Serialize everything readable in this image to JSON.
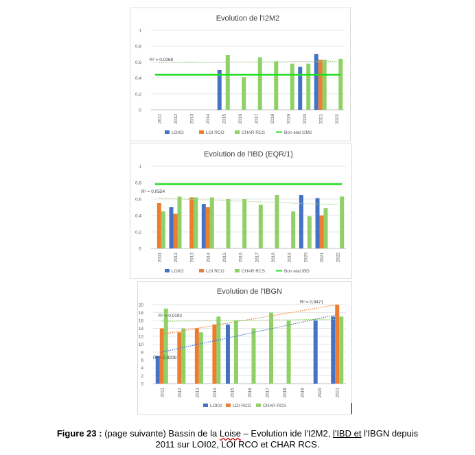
{
  "colors": {
    "loi02": "#4472c4",
    "loircp": "#ed7d31",
    "charrcs": "#8fd166",
    "bonetat": "#22dd22",
    "grid": "#e6e6e6",
    "axis_text": "#595959",
    "title_text": "#404040"
  },
  "caption": {
    "label": "Figure 23 :",
    "text1": " (page suivante) Bassin de la ",
    "loise": "Loise",
    "text2": " – Evolution ide l'I2M2, ",
    "ibd": "l'IBD  et",
    "text3": " l'IBGN depuis",
    "line2": "2011 sur LOI02, LOI RCO et CHAR RCS."
  },
  "chart_data": [
    {
      "type": "bar",
      "title": "Evolution de l'I2M2",
      "categories": [
        "2011",
        "2012",
        "2013",
        "2014",
        "2015",
        "2016",
        "2017",
        "2018",
        "2019",
        "2020",
        "2021",
        "2022"
      ],
      "ylim": [
        0,
        1
      ],
      "yticks": [
        "0",
        "0,2",
        "0,4",
        "0,6",
        "0,8",
        "1"
      ],
      "grid": true,
      "legend_position": "bottom",
      "series": [
        {
          "name": "LOI02",
          "values": [
            null,
            null,
            null,
            null,
            0.5,
            null,
            null,
            null,
            null,
            0.54,
            0.7,
            null
          ]
        },
        {
          "name": "LOI RCO",
          "values": [
            null,
            null,
            null,
            null,
            null,
            null,
            null,
            null,
            null,
            null,
            0.63,
            null
          ]
        },
        {
          "name": "CHAR RCS",
          "values": [
            null,
            null,
            null,
            null,
            0.69,
            0.41,
            0.66,
            0.61,
            0.58,
            0.58,
            0.63,
            0.64
          ]
        }
      ],
      "reference_line": {
        "name": "Bon etat I2M2",
        "value": 0.44
      },
      "trendlines": [
        {
          "label": "R² = 0,0268",
          "from": [
            0,
            0.59
          ],
          "to": [
            11,
            0.61
          ]
        }
      ]
    },
    {
      "type": "bar",
      "title": "Evolution de l'IBD (EQR/1)",
      "categories": [
        "2011",
        "2012",
        "2013",
        "2014",
        "2015",
        "2016",
        "2017",
        "2018",
        "2019",
        "2020",
        "2021",
        "2022"
      ],
      "ylim": [
        0,
        1
      ],
      "yticks": [
        "0",
        "0,2",
        "0,4",
        "0,6",
        "0,8",
        "1"
      ],
      "grid": true,
      "legend_position": "bottom",
      "series": [
        {
          "name": "LOI02",
          "values": [
            null,
            0.5,
            null,
            0.54,
            null,
            null,
            null,
            null,
            null,
            0.65,
            0.61,
            null
          ]
        },
        {
          "name": "LOI RCO",
          "values": [
            0.55,
            0.42,
            0.62,
            0.5,
            null,
            null,
            null,
            null,
            null,
            null,
            0.4,
            null
          ]
        },
        {
          "name": "CHAR RCS",
          "values": [
            0.45,
            0.63,
            0.62,
            0.62,
            0.6,
            0.6,
            0.53,
            0.65,
            0.45,
            0.39,
            0.49,
            0.63
          ]
        }
      ],
      "reference_line": {
        "name": "Bon etat IBD",
        "value": 0.78
      },
      "trendlines": [
        {
          "label": "R² = 0,0554",
          "from": [
            0,
            0.61
          ],
          "to": [
            11,
            0.53
          ]
        }
      ]
    },
    {
      "type": "bar",
      "title": "Evolution de l'IBGN",
      "categories": [
        "2011",
        "2012",
        "2013",
        "2014",
        "2015",
        "2016",
        "2017",
        "2018",
        "2019",
        "2020",
        "2021"
      ],
      "ylim": [
        0,
        20
      ],
      "yticks": [
        "0",
        "2",
        "4",
        "6",
        "8",
        "10",
        "12",
        "14",
        "16",
        "18",
        "20"
      ],
      "grid": true,
      "legend_position": "bottom",
      "series": [
        {
          "name": "LOI02",
          "values": [
            7,
            null,
            null,
            null,
            15,
            null,
            null,
            null,
            null,
            16,
            17
          ]
        },
        {
          "name": "LOI RCO",
          "values": [
            14,
            13,
            14,
            15,
            null,
            null,
            null,
            null,
            null,
            null,
            20
          ]
        },
        {
          "name": "CHAR RCS",
          "values": [
            19,
            14,
            13,
            17,
            16,
            14,
            18,
            16,
            null,
            null,
            17
          ]
        }
      ],
      "trendlines": [
        {
          "label": "R² = 0,9471",
          "from": [
            0,
            12.5
          ],
          "to": [
            10,
            20
          ],
          "color_key": "loircp"
        },
        {
          "label": "R² = 0,0192",
          "from": [
            0,
            15.8
          ],
          "to": [
            10,
            16.3
          ],
          "color_key": "charrcs"
        },
        {
          "label": "R² = 0,8208",
          "from": [
            0,
            8
          ],
          "to": [
            10,
            17.5
          ],
          "color_key": "loi02"
        }
      ]
    }
  ]
}
